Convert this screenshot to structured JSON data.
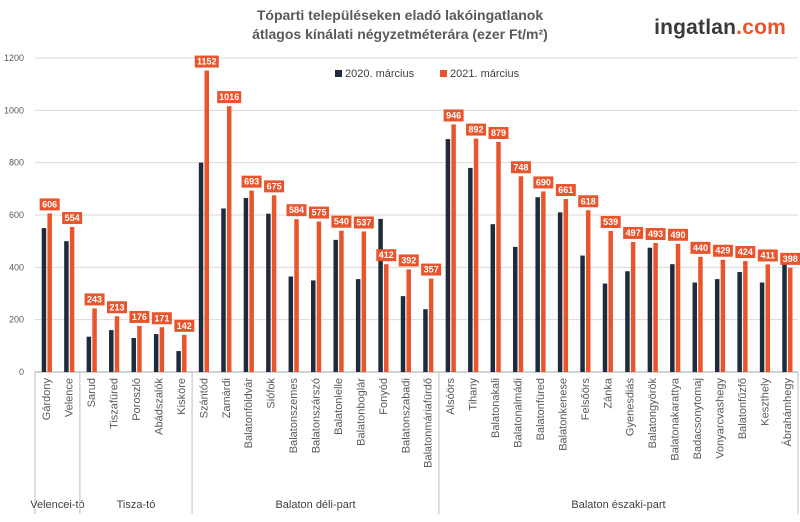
{
  "header": {
    "title_line1": "Tóparti településeken eladó lakóingatlanok",
    "title_line2": "átlagos kínálati négyzetméterára (ezer Ft/m²)",
    "brand_main": "ingatlan",
    "brand_ext": ".com"
  },
  "chart_data": {
    "type": "bar",
    "title": "Tóparti településeken eladó lakóingatlanok átlagos kínálati négyzetméterára (ezer Ft/m²)",
    "ylim": [
      0,
      1200
    ],
    "yticks": [
      0,
      200,
      400,
      600,
      800,
      1000,
      1200
    ],
    "grid": true,
    "legend_position": "top",
    "colors": {
      "2020. március": "#1f2b3d",
      "2021. március": "#e8542b",
      "label_bg": "#e8542b"
    },
    "categories": [
      "Gárdony",
      "Velence",
      "Sarud",
      "Tiszafüred",
      "Poroszló",
      "Abádszalók",
      "Kisköre",
      "Szántód",
      "Zamárdi",
      "Balatonföldvár",
      "Siófok",
      "Balatonszemes",
      "Balatonszárszó",
      "Balatonlelle",
      "Balatonboglár",
      "Fonyód",
      "Balatonszabadi",
      "Balatonmáriafürdő",
      "Alsóörs",
      "Tihany",
      "Balatonakali",
      "Balatonalmádi",
      "Balatonfüred",
      "Balatonkenese",
      "Felsőörs",
      "Zánka",
      "Gyenesdiás",
      "Balatongyörök",
      "Balatonakarattya",
      "Badacsonytomaj",
      "Vonyarcvashegy",
      "Balatonfűzfő",
      "Keszthely",
      "Ábrahámhegy"
    ],
    "series": [
      {
        "name": "2020. március",
        "values": [
          550,
          500,
          135,
          160,
          130,
          145,
          80,
          800,
          625,
          665,
          605,
          365,
          350,
          505,
          355,
          585,
          290,
          240,
          890,
          780,
          565,
          478,
          668,
          610,
          445,
          338,
          385,
          475,
          412,
          342,
          355,
          382,
          342,
          418
        ]
      },
      {
        "name": "2021. március",
        "values": [
          606,
          554,
          243,
          213,
          176,
          171,
          142,
          1152,
          1016,
          693,
          675,
          584,
          575,
          540,
          537,
          412,
          392,
          357,
          946,
          892,
          879,
          748,
          690,
          661,
          618,
          539,
          497,
          493,
          490,
          440,
          429,
          424,
          411,
          398
        ]
      }
    ],
    "groups": [
      {
        "name": "Velencei-tó",
        "start": 0,
        "end": 1
      },
      {
        "name": "Tisza-tó",
        "start": 2,
        "end": 6
      },
      {
        "name": "Balaton déli-part",
        "start": 7,
        "end": 17
      },
      {
        "name": "Balaton északi-part",
        "start": 18,
        "end": 33
      }
    ]
  }
}
